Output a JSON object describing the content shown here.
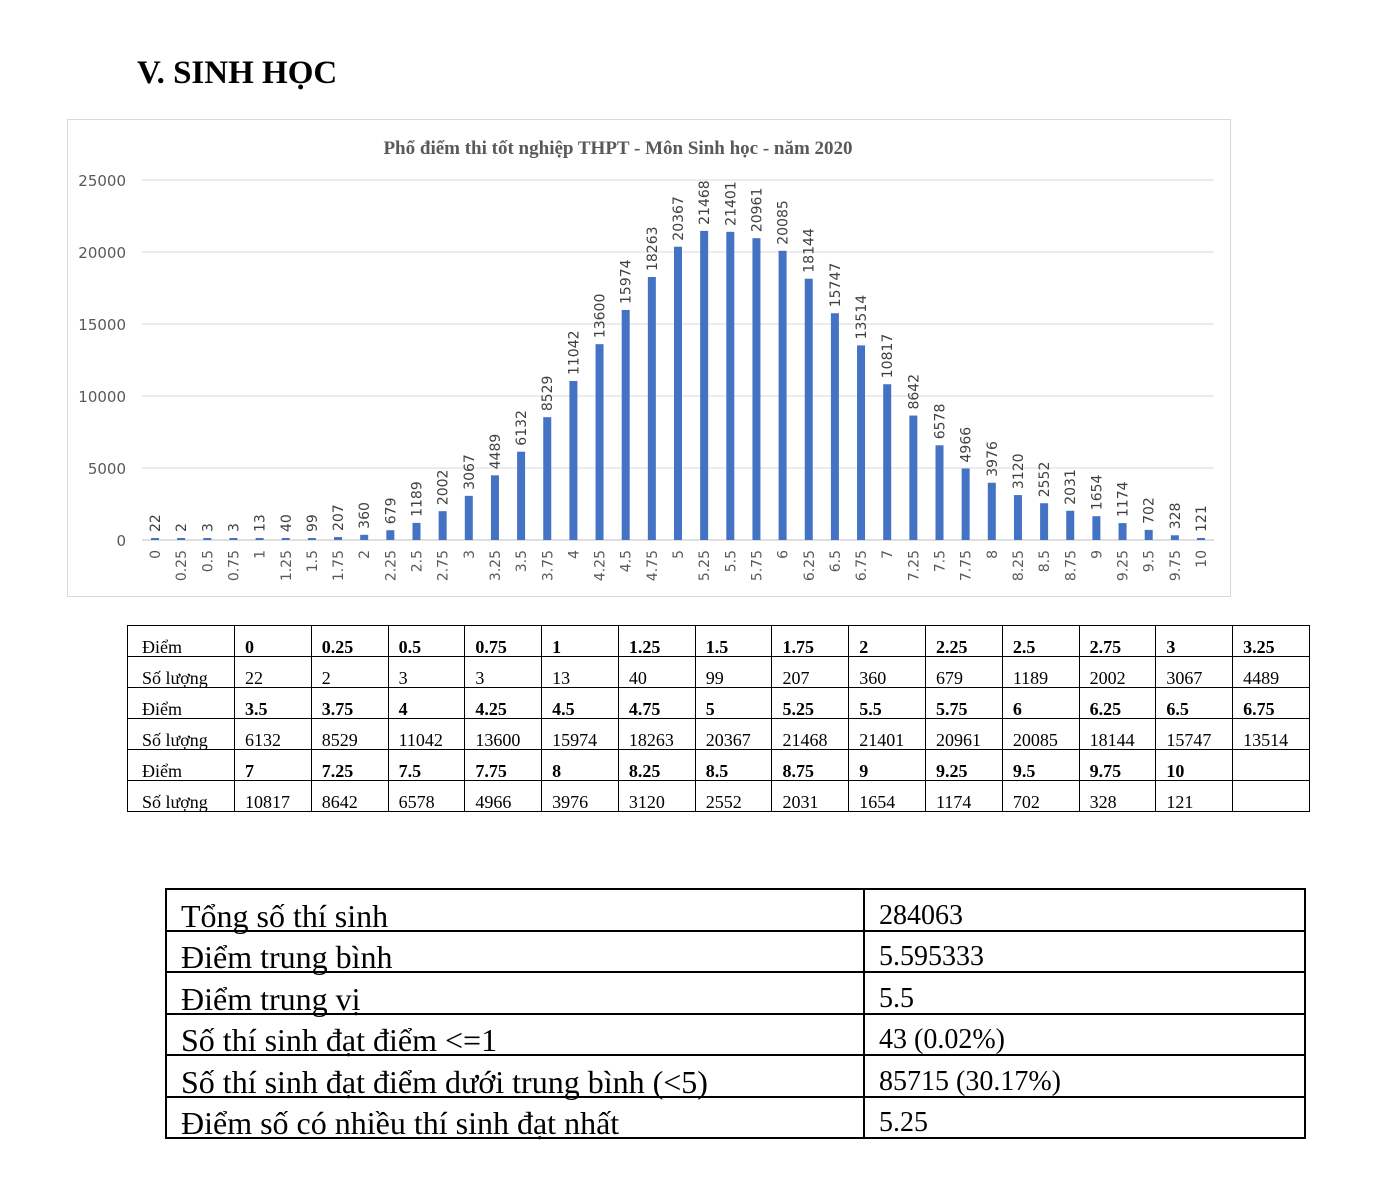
{
  "heading": "V.  SINH HỌC",
  "chart_data": {
    "type": "bar",
    "title": "Phổ điểm thi tốt nghiệp THPT - Môn Sinh học - năm 2020",
    "xlabel": "",
    "ylabel": "",
    "ylim": [
      0,
      25000
    ],
    "yticks": [
      0,
      5000,
      10000,
      15000,
      20000,
      25000
    ],
    "grid": true,
    "bar_color": "#4472c4",
    "categories": [
      "0",
      "0.25",
      "0.5",
      "0.75",
      "1",
      "1.25",
      "1.5",
      "1.75",
      "2",
      "2.25",
      "2.5",
      "2.75",
      "3",
      "3.25",
      "3.5",
      "3.75",
      "4",
      "4.25",
      "4.5",
      "4.75",
      "5",
      "5.25",
      "5.5",
      "5.75",
      "6",
      "6.25",
      "6.5",
      "6.75",
      "7",
      "7.25",
      "7.5",
      "7.75",
      "8",
      "8.25",
      "8.5",
      "8.75",
      "9",
      "9.25",
      "9.5",
      "9.75",
      "10"
    ],
    "values": [
      22,
      2,
      3,
      3,
      13,
      40,
      99,
      207,
      360,
      679,
      1189,
      2002,
      3067,
      4489,
      6132,
      8529,
      11042,
      13600,
      15974,
      18263,
      20367,
      21468,
      21401,
      20961,
      20085,
      18144,
      15747,
      13514,
      10817,
      8642,
      6578,
      4966,
      3976,
      3120,
      2552,
      2031,
      1654,
      1174,
      702,
      328,
      121
    ]
  },
  "score_table": {
    "score_label": "Điểm",
    "count_label": "Số lượng",
    "blocks": [
      {
        "scores": [
          "0",
          "0.25",
          "0.5",
          "0.75",
          "1",
          "1.25",
          "1.5",
          "1.75",
          "2",
          "2.25",
          "2.5",
          "2.75",
          "3",
          "3.25"
        ],
        "counts": [
          "22",
          "2",
          "3",
          "3",
          "13",
          "40",
          "99",
          "207",
          "360",
          "679",
          "1189",
          "2002",
          "3067",
          "4489"
        ]
      },
      {
        "scores": [
          "3.5",
          "3.75",
          "4",
          "4.25",
          "4.5",
          "4.75",
          "5",
          "5.25",
          "5.5",
          "5.75",
          "6",
          "6.25",
          "6.5",
          "6.75"
        ],
        "counts": [
          "6132",
          "8529",
          "11042",
          "13600",
          "15974",
          "18263",
          "20367",
          "21468",
          "21401",
          "20961",
          "20085",
          "18144",
          "15747",
          "13514"
        ]
      },
      {
        "scores": [
          "7",
          "7.25",
          "7.5",
          "7.75",
          "8",
          "8.25",
          "8.5",
          "8.75",
          "9",
          "9.25",
          "9.5",
          "9.75",
          "10",
          ""
        ],
        "counts": [
          "10817",
          "8642",
          "6578",
          "4966",
          "3976",
          "3120",
          "2552",
          "2031",
          "1654",
          "1174",
          "702",
          "328",
          "121",
          ""
        ]
      }
    ]
  },
  "summary": [
    {
      "label": "Tổng số thí sinh",
      "value": "284063"
    },
    {
      "label": "Điểm trung bình",
      "value": "5.595333"
    },
    {
      "label": "Điểm trung vị",
      "value": "5.5"
    },
    {
      "label": "Số thí sinh đạt điểm <=1",
      "value": "43 (0.02%)"
    },
    {
      "label": "Số thí sinh đạt điểm dưới trung bình (<5)",
      "value": "85715 (30.17%)"
    },
    {
      "label": "Điểm số có nhiều thí sinh đạt nhất",
      "value": "5.25"
    }
  ]
}
